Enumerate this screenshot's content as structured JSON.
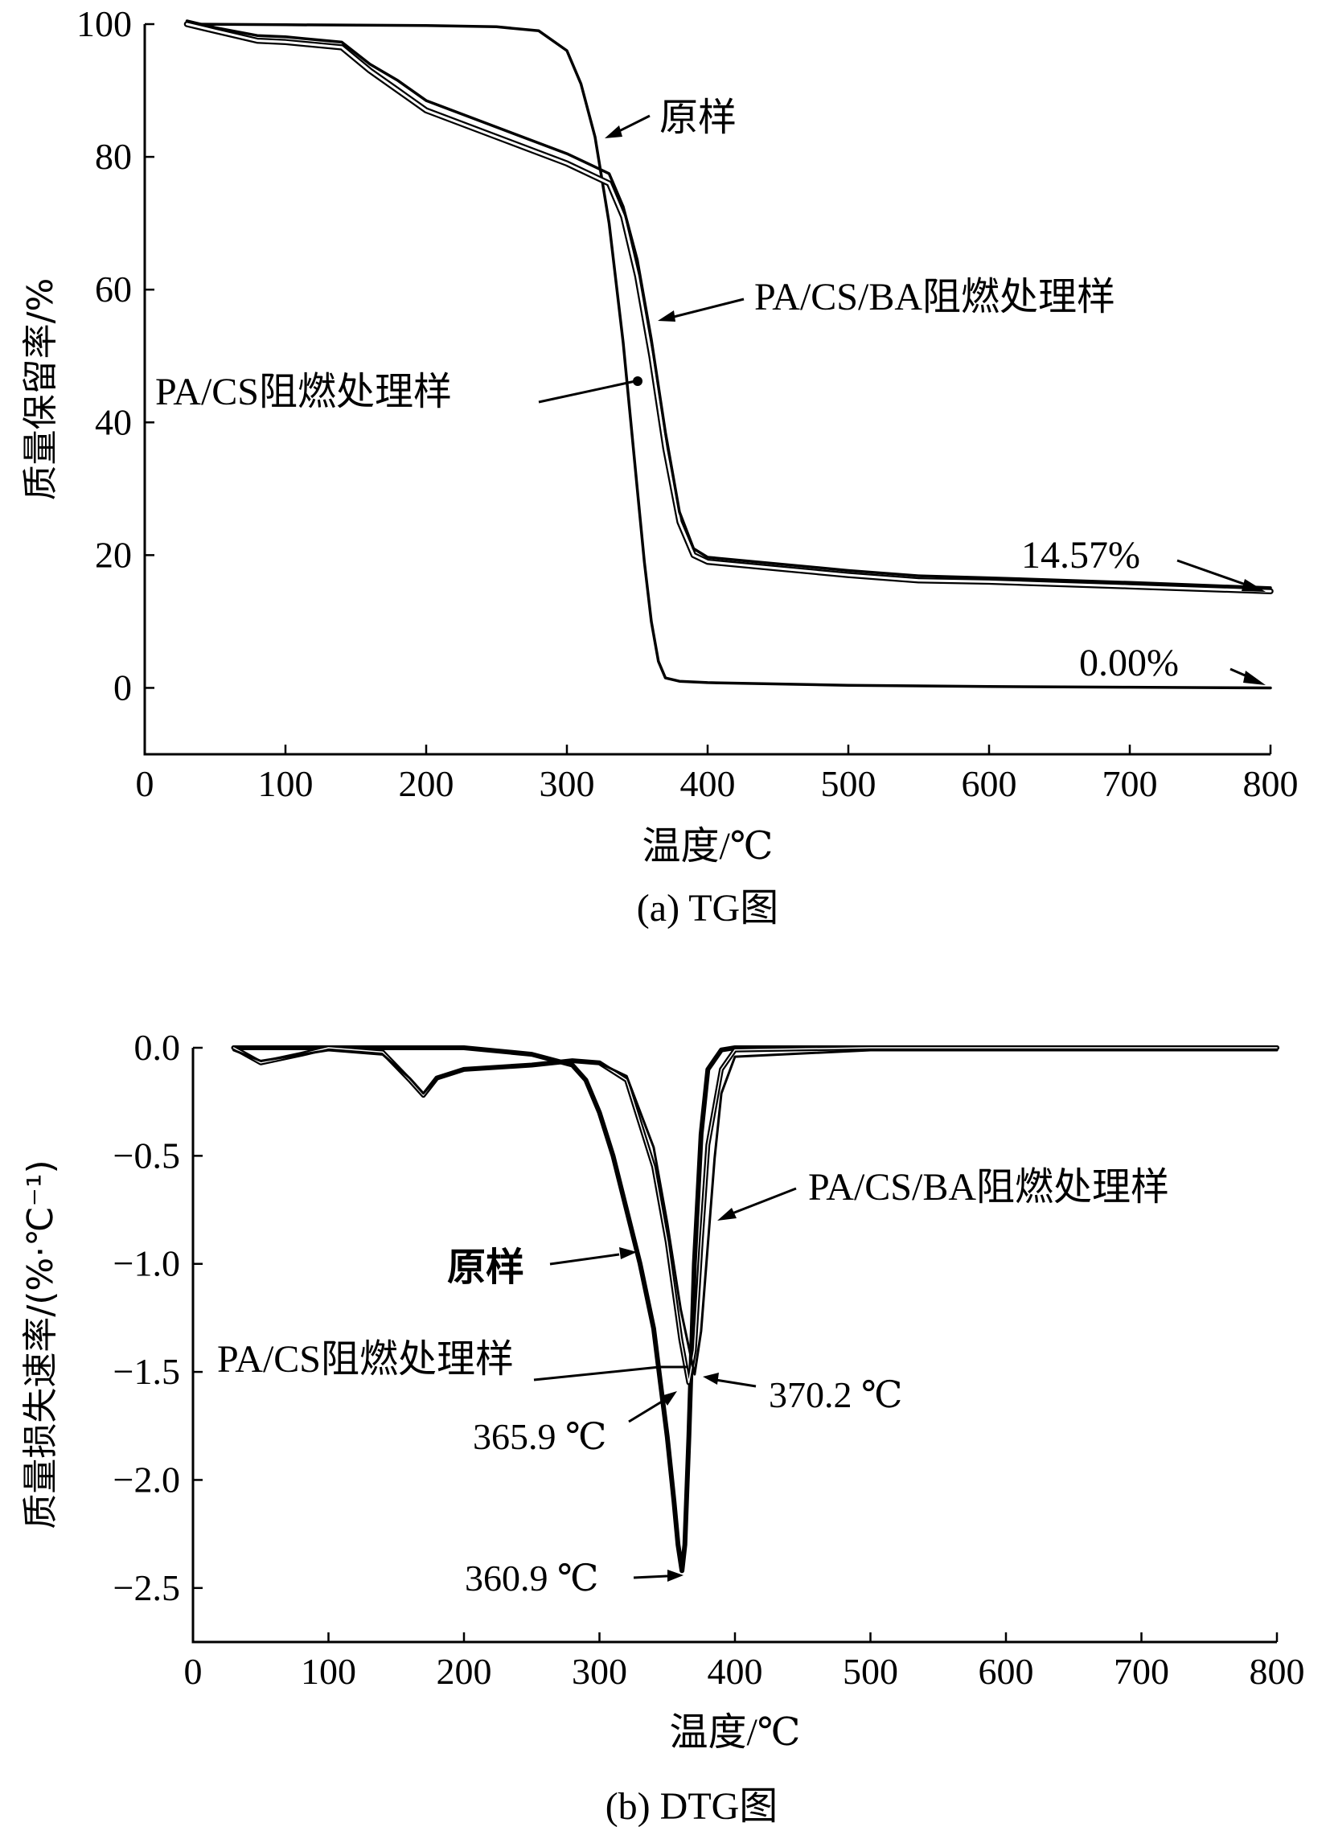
{
  "chart_data": [
    {
      "type": "line",
      "caption": "(a) TG图",
      "xlabel": "温度/℃",
      "ylabel": "质量保留率/%",
      "xlim": [
        0,
        800
      ],
      "ylim": [
        -10,
        100
      ],
      "xticks": [
        0,
        100,
        200,
        300,
        400,
        500,
        600,
        700,
        800
      ],
      "yticks": [
        0,
        20,
        40,
        60,
        80,
        100
      ],
      "grid": false,
      "series": [
        {
          "name": "原样",
          "x": [
            30,
            100,
            200,
            250,
            280,
            300,
            310,
            320,
            330,
            340,
            350,
            355,
            360,
            365,
            370,
            380,
            400,
            500,
            600,
            700,
            800
          ],
          "y": [
            100,
            99.9,
            99.8,
            99.6,
            99,
            96,
            91,
            83,
            70,
            52,
            30,
            19,
            10,
            4,
            1.5,
            1,
            0.8,
            0.4,
            0.2,
            0.1,
            0.0
          ]
        },
        {
          "name": "PA/CS阻燃处理样",
          "x": [
            30,
            50,
            80,
            100,
            140,
            160,
            180,
            200,
            250,
            300,
            320,
            330,
            340,
            350,
            360,
            370,
            380,
            390,
            400,
            450,
            500,
            550,
            600,
            700,
            800
          ],
          "y": [
            100,
            99,
            97.5,
            97.3,
            96.5,
            93,
            90,
            87,
            83,
            79,
            77,
            76,
            71,
            62,
            50,
            36,
            25,
            20,
            19,
            18,
            17,
            16.2,
            16,
            15.3,
            14.57
          ]
        },
        {
          "name": "PA/CS/BA阻燃处理样",
          "x": [
            30,
            50,
            80,
            100,
            140,
            160,
            180,
            200,
            250,
            300,
            320,
            330,
            340,
            350,
            360,
            370,
            380,
            390,
            400,
            450,
            500,
            550,
            600,
            700,
            800
          ],
          "y": [
            100,
            99,
            97.8,
            97.6,
            96.8,
            93.5,
            91,
            88,
            84,
            80,
            78,
            77,
            72,
            64,
            52,
            38,
            26,
            20.5,
            19.2,
            18.2,
            17.2,
            16.4,
            16.1,
            15.4,
            14.6
          ]
        }
      ],
      "annotations": [
        "原样",
        "PA/CS/BA阻燃处理样",
        "PA/CS阻燃处理样",
        "14.57%",
        "0.00%"
      ]
    },
    {
      "type": "line",
      "caption": "(b) DTG图",
      "xlabel": "温度/℃",
      "ylabel": "质量损失速率/(%·℃⁻¹)",
      "xlim": [
        0,
        800
      ],
      "ylim": [
        -2.75,
        0
      ],
      "xticks": [
        0,
        100,
        200,
        300,
        400,
        500,
        600,
        700,
        800
      ],
      "yticks": [
        0.0,
        -0.5,
        -1.0,
        -1.5,
        -2.0,
        -2.5
      ],
      "ytick_labels": [
        "0.0",
        "−0.5",
        "−1.0",
        "−1.5",
        "−2.0",
        "−2.5"
      ],
      "grid": false,
      "series": [
        {
          "name": "原样",
          "x": [
            30,
            100,
            200,
            250,
            280,
            290,
            300,
            310,
            320,
            330,
            340,
            345,
            350,
            355,
            358,
            360.9,
            363,
            366,
            370,
            375,
            380,
            390,
            400,
            500,
            800
          ],
          "y": [
            0,
            0,
            0,
            -0.03,
            -0.08,
            -0.15,
            -0.3,
            -0.5,
            -0.75,
            -1.0,
            -1.3,
            -1.55,
            -1.8,
            -2.1,
            -2.3,
            -2.42,
            -2.3,
            -1.8,
            -1.0,
            -0.4,
            -0.1,
            -0.01,
            0,
            0,
            0
          ]
        },
        {
          "name": "PA/CS阻燃处理样",
          "x": [
            30,
            50,
            80,
            100,
            140,
            160,
            170,
            180,
            200,
            250,
            280,
            300,
            320,
            340,
            350,
            360,
            365.9,
            370,
            375,
            380,
            390,
            400,
            500,
            800
          ],
          "y": [
            0,
            -0.07,
            -0.03,
            0,
            -0.02,
            -0.15,
            -0.22,
            -0.14,
            -0.1,
            -0.08,
            -0.06,
            -0.07,
            -0.15,
            -0.55,
            -0.9,
            -1.35,
            -1.55,
            -1.4,
            -0.9,
            -0.45,
            -0.1,
            -0.01,
            0,
            0
          ]
        },
        {
          "name": "PA/CS/BA阻燃处理样",
          "x": [
            30,
            50,
            80,
            100,
            140,
            160,
            170,
            180,
            200,
            250,
            280,
            300,
            320,
            340,
            350,
            360,
            370.2,
            375,
            380,
            385,
            390,
            400,
            500,
            800
          ],
          "y": [
            0,
            -0.05,
            -0.02,
            0,
            -0.02,
            -0.13,
            -0.2,
            -0.13,
            -0.09,
            -0.07,
            -0.05,
            -0.06,
            -0.12,
            -0.45,
            -0.8,
            -1.2,
            -1.5,
            -1.3,
            -0.9,
            -0.5,
            -0.2,
            -0.03,
            0,
            0
          ]
        }
      ],
      "annotations": [
        "PA/CS/BA阻燃处理样",
        "原样",
        "PA/CS阻燃处理样",
        "365.9 ℃",
        "370.2 ℃",
        "360.9 ℃"
      ]
    }
  ]
}
